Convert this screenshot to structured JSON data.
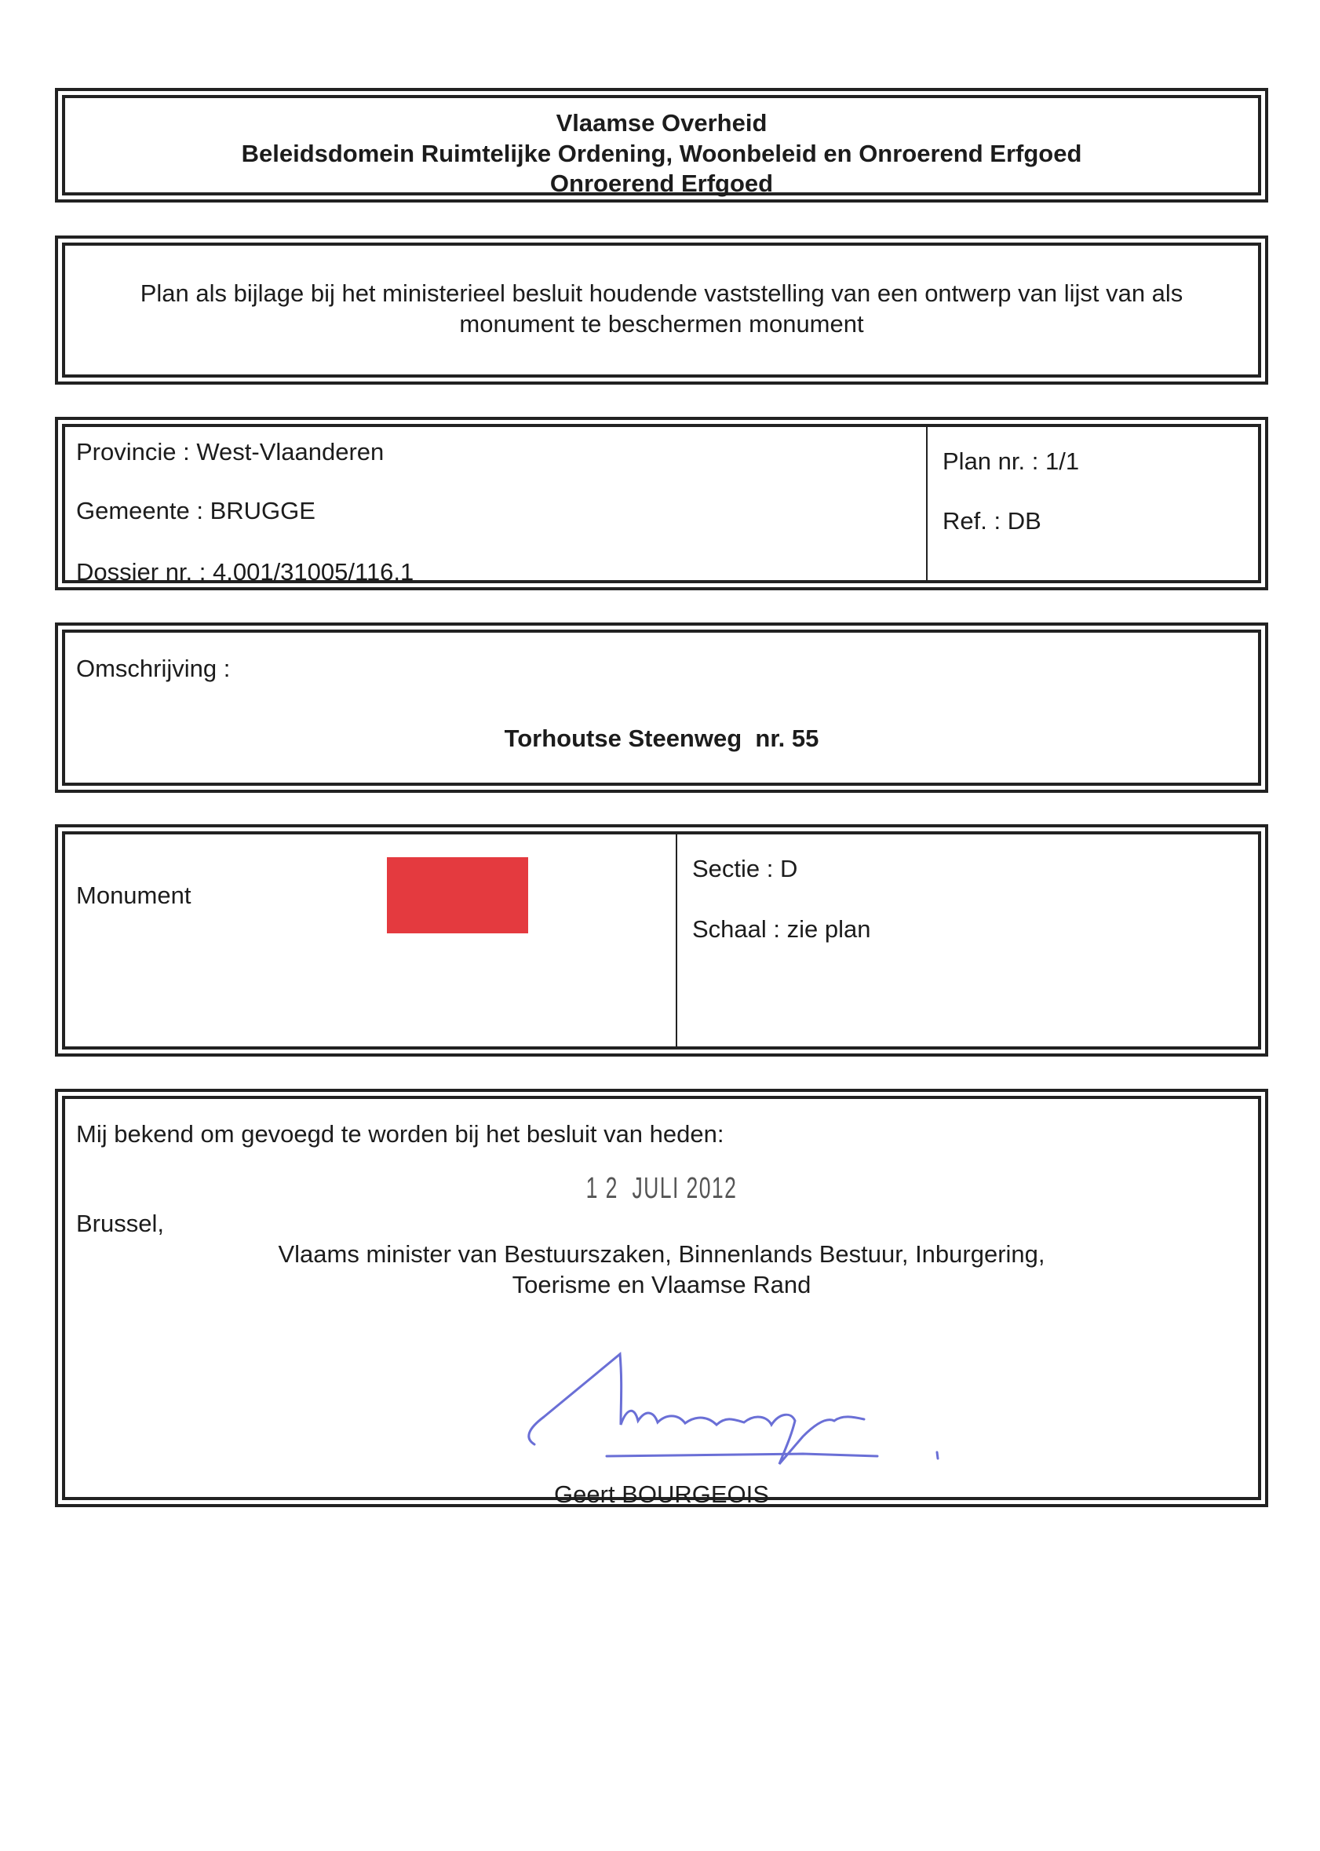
{
  "header": {
    "line1": "Vlaamse Overheid",
    "line2": "Beleidsdomein Ruimtelijke Ordening, Woonbeleid en Onroerend Erfgoed",
    "line3": "Onroerend Erfgoed"
  },
  "subject": {
    "line1": "Plan als bijlage bij het ministerieel besluit houdende vaststelling van een ontwerp van lijst van als",
    "line2": "monument te beschermen monument"
  },
  "info": {
    "provincie": "Provincie : West-Vlaanderen",
    "gemeente": "Gemeente : BRUGGE",
    "dossier": "Dossier nr. : 4.001/31005/116.1",
    "plan": "Plan nr. : 1/1",
    "ref": "Ref. : DB"
  },
  "description": {
    "label": "Omschrijving :",
    "value": "Torhoutse Steenweg  nr. 55"
  },
  "legend": {
    "label": "Monument",
    "color": "#e43a3f",
    "sectie": "Sectie : D",
    "schaal": "Schaal : zie plan"
  },
  "signoff": {
    "intro": "Mij bekend om gevoegd te worden bij het besluit van heden:",
    "date_stamp": "1 2  JULI 2012",
    "place": "Brussel,",
    "title1": "Vlaams minister van Bestuurszaken, Binnenlands Bestuur, Inburgering,",
    "title2": "Toerisme en Vlaamse Rand",
    "name": "Geert BOURGEOIS",
    "signature_color": "#6a6fd6"
  }
}
